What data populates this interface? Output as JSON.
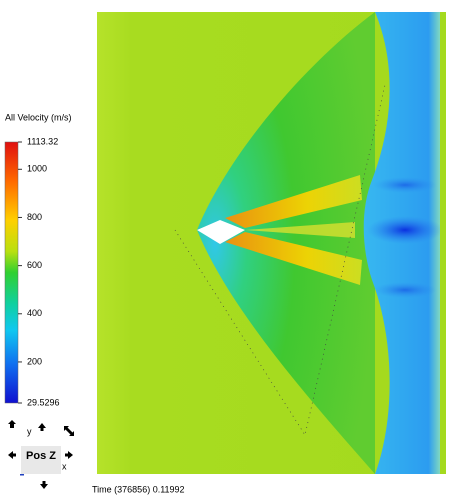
{
  "legend": {
    "title": "All Velocity (m/s)",
    "max": 1113.32,
    "min": 29.5296,
    "ticks": [
      1000,
      800,
      600,
      400,
      200
    ]
  },
  "status": {
    "time": "Time (376856) 0.11992"
  },
  "view_controls": {
    "view": "Pos Z",
    "y_axis": "y",
    "x_axis": "x"
  }
}
